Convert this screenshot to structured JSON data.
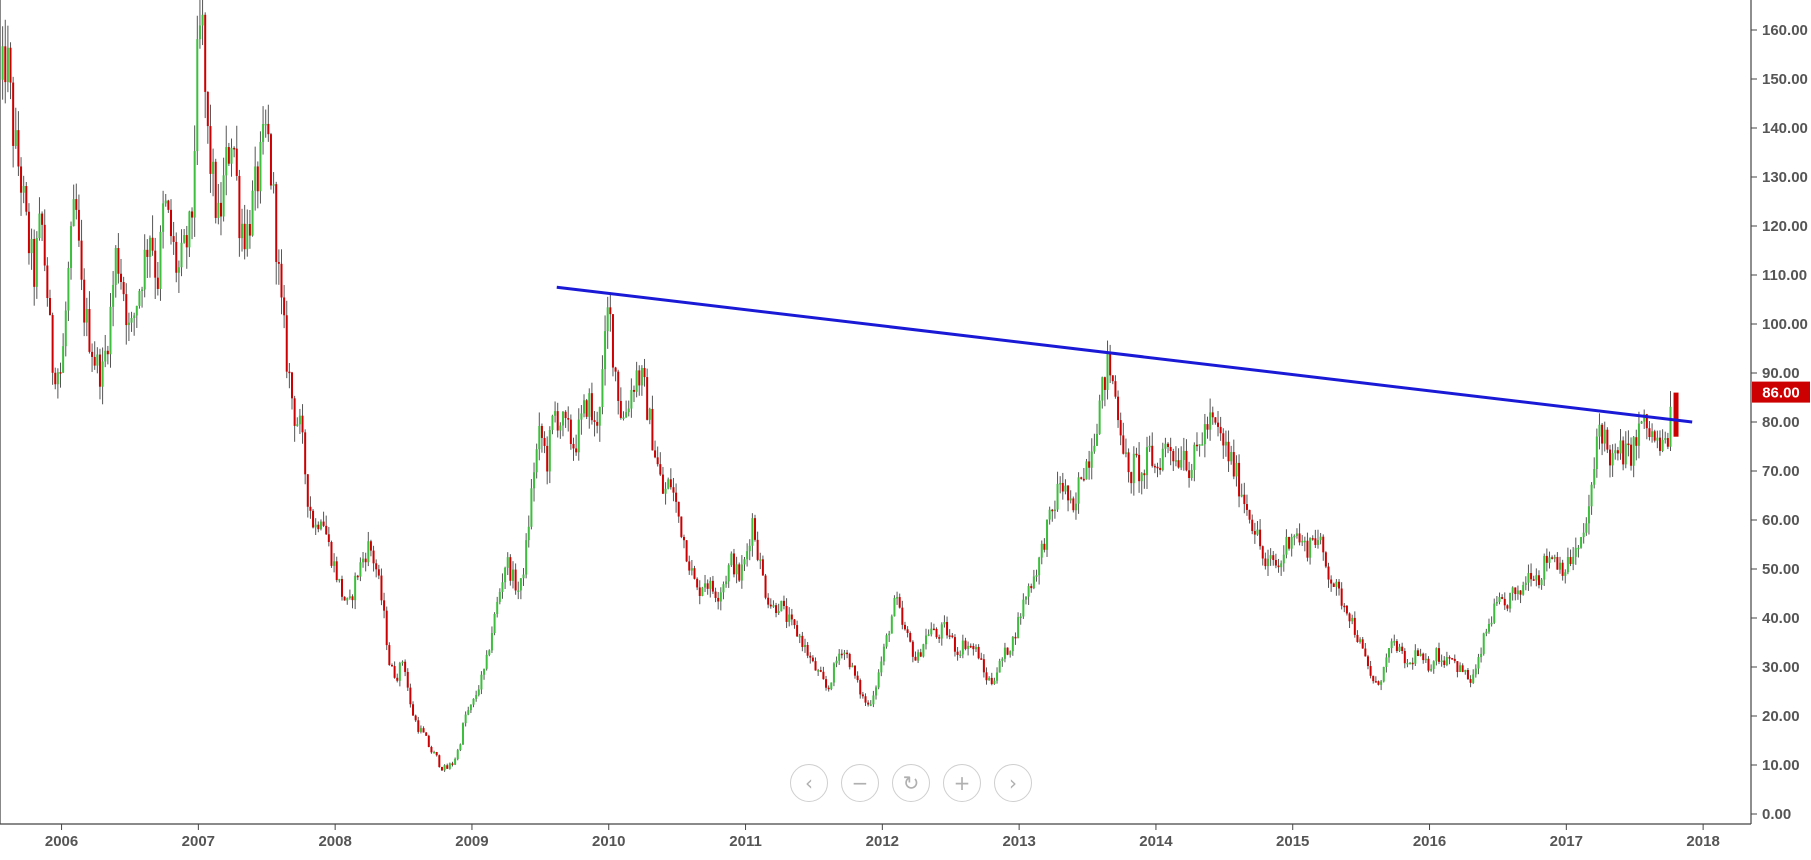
{
  "chart_data": {
    "type": "candlestick",
    "title": "",
    "xlabel": "",
    "ylabel": "",
    "ylim": [
      0,
      160
    ],
    "yticks": [
      "0.00",
      "10.00",
      "20.00",
      "30.00",
      "40.00",
      "50.00",
      "60.00",
      "70.00",
      "80.00",
      "90.00",
      "100.00",
      "110.00",
      "120.00",
      "130.00",
      "140.00",
      "150.00",
      "160.00"
    ],
    "xticks": [
      "2006",
      "2007",
      "2008",
      "2009",
      "2010",
      "2011",
      "2012",
      "2013",
      "2014",
      "2015",
      "2016",
      "2017",
      "2018"
    ],
    "xlim": [
      2005.55,
      2018.35
    ],
    "last_price_label": "86.00",
    "last_price": 86,
    "trendline": {
      "from": {
        "x": 2009.62,
        "y": 107.5
      },
      "to": {
        "x": 2017.92,
        "y": 80.0
      }
    },
    "price_path": [
      [
        2005.55,
        148
      ],
      [
        2005.6,
        155
      ],
      [
        2005.65,
        138
      ],
      [
        2005.7,
        130
      ],
      [
        2005.75,
        118
      ],
      [
        2005.8,
        110
      ],
      [
        2005.85,
        122
      ],
      [
        2005.9,
        105
      ],
      [
        2005.93,
        92
      ],
      [
        2006.0,
        90
      ],
      [
        2006.05,
        110
      ],
      [
        2006.1,
        125
      ],
      [
        2006.15,
        105
      ],
      [
        2006.2,
        98
      ],
      [
        2006.25,
        92
      ],
      [
        2006.3,
        90
      ],
      [
        2006.35,
        100
      ],
      [
        2006.4,
        115
      ],
      [
        2006.45,
        108
      ],
      [
        2006.5,
        97
      ],
      [
        2006.55,
        105
      ],
      [
        2006.6,
        112
      ],
      [
        2006.65,
        120
      ],
      [
        2006.7,
        108
      ],
      [
        2006.75,
        125
      ],
      [
        2006.8,
        118
      ],
      [
        2006.85,
        110
      ],
      [
        2006.9,
        115
      ],
      [
        2006.95,
        120
      ],
      [
        2007.0,
        158
      ],
      [
        2007.03,
        160
      ],
      [
        2007.06,
        140
      ],
      [
        2007.1,
        130
      ],
      [
        2007.15,
        120
      ],
      [
        2007.2,
        132
      ],
      [
        2007.25,
        140
      ],
      [
        2007.3,
        122
      ],
      [
        2007.35,
        118
      ],
      [
        2007.4,
        125
      ],
      [
        2007.45,
        132
      ],
      [
        2007.5,
        140
      ],
      [
        2007.55,
        125
      ],
      [
        2007.6,
        105
      ],
      [
        2007.65,
        92
      ],
      [
        2007.7,
        82
      ],
      [
        2007.75,
        78
      ],
      [
        2007.8,
        65
      ],
      [
        2007.85,
        58
      ],
      [
        2007.9,
        62
      ],
      [
        2007.95,
        55
      ],
      [
        2008.0,
        50
      ],
      [
        2008.05,
        45
      ],
      [
        2008.1,
        42
      ],
      [
        2008.15,
        48
      ],
      [
        2008.2,
        52
      ],
      [
        2008.25,
        55
      ],
      [
        2008.3,
        50
      ],
      [
        2008.35,
        42
      ],
      [
        2008.4,
        30
      ],
      [
        2008.45,
        28
      ],
      [
        2008.5,
        32
      ],
      [
        2008.55,
        22
      ],
      [
        2008.6,
        18
      ],
      [
        2008.65,
        16
      ],
      [
        2008.7,
        13
      ],
      [
        2008.75,
        11
      ],
      [
        2008.8,
        9
      ],
      [
        2008.85,
        10
      ],
      [
        2008.9,
        13
      ],
      [
        2008.95,
        20
      ],
      [
        2009.0,
        22
      ],
      [
        2009.05,
        26
      ],
      [
        2009.1,
        30
      ],
      [
        2009.15,
        38
      ],
      [
        2009.2,
        45
      ],
      [
        2009.25,
        52
      ],
      [
        2009.3,
        48
      ],
      [
        2009.35,
        45
      ],
      [
        2009.4,
        55
      ],
      [
        2009.45,
        70
      ],
      [
        2009.5,
        78
      ],
      [
        2009.55,
        72
      ],
      [
        2009.6,
        82
      ],
      [
        2009.65,
        80
      ],
      [
        2009.7,
        78
      ],
      [
        2009.75,
        75
      ],
      [
        2009.8,
        80
      ],
      [
        2009.85,
        85
      ],
      [
        2009.9,
        78
      ],
      [
        2009.95,
        88
      ],
      [
        2010.0,
        104
      ],
      [
        2010.03,
        95
      ],
      [
        2010.06,
        88
      ],
      [
        2010.1,
        80
      ],
      [
        2010.15,
        85
      ],
      [
        2010.2,
        90
      ],
      [
        2010.25,
        88
      ],
      [
        2010.3,
        80
      ],
      [
        2010.35,
        72
      ],
      [
        2010.4,
        65
      ],
      [
        2010.45,
        68
      ],
      [
        2010.5,
        62
      ],
      [
        2010.55,
        56
      ],
      [
        2010.6,
        50
      ],
      [
        2010.65,
        45
      ],
      [
        2010.7,
        48
      ],
      [
        2010.75,
        46
      ],
      [
        2010.8,
        45
      ],
      [
        2010.85,
        48
      ],
      [
        2010.9,
        52
      ],
      [
        2010.95,
        48
      ],
      [
        2011.0,
        52
      ],
      [
        2011.05,
        60
      ],
      [
        2011.1,
        52
      ],
      [
        2011.15,
        45
      ],
      [
        2011.2,
        42
      ],
      [
        2011.25,
        43
      ],
      [
        2011.3,
        40
      ],
      [
        2011.35,
        38
      ],
      [
        2011.4,
        36
      ],
      [
        2011.45,
        33
      ],
      [
        2011.5,
        30
      ],
      [
        2011.55,
        28
      ],
      [
        2011.6,
        25
      ],
      [
        2011.65,
        30
      ],
      [
        2011.7,
        34
      ],
      [
        2011.75,
        32
      ],
      [
        2011.8,
        28
      ],
      [
        2011.85,
        24
      ],
      [
        2011.9,
        22
      ],
      [
        2011.95,
        26
      ],
      [
        2012.0,
        32
      ],
      [
        2012.05,
        38
      ],
      [
        2012.1,
        44
      ],
      [
        2012.15,
        38
      ],
      [
        2012.2,
        35
      ],
      [
        2012.25,
        31
      ],
      [
        2012.3,
        35
      ],
      [
        2012.35,
        38
      ],
      [
        2012.4,
        36
      ],
      [
        2012.45,
        38
      ],
      [
        2012.5,
        36
      ],
      [
        2012.55,
        33
      ],
      [
        2012.6,
        35
      ],
      [
        2012.65,
        34
      ],
      [
        2012.7,
        33
      ],
      [
        2012.75,
        28
      ],
      [
        2012.8,
        27
      ],
      [
        2012.85,
        30
      ],
      [
        2012.9,
        33
      ],
      [
        2012.95,
        35
      ],
      [
        2013.0,
        40
      ],
      [
        2013.05,
        45
      ],
      [
        2013.1,
        48
      ],
      [
        2013.15,
        52
      ],
      [
        2013.2,
        58
      ],
      [
        2013.25,
        62
      ],
      [
        2013.3,
        68
      ],
      [
        2013.35,
        65
      ],
      [
        2013.4,
        60
      ],
      [
        2013.45,
        70
      ],
      [
        2013.5,
        72
      ],
      [
        2013.55,
        78
      ],
      [
        2013.6,
        85
      ],
      [
        2013.65,
        92
      ],
      [
        2013.7,
        86
      ],
      [
        2013.75,
        78
      ],
      [
        2013.8,
        68
      ],
      [
        2013.85,
        72
      ],
      [
        2013.9,
        68
      ],
      [
        2013.95,
        74
      ],
      [
        2014.0,
        70
      ],
      [
        2014.05,
        74
      ],
      [
        2014.1,
        76
      ],
      [
        2014.15,
        72
      ],
      [
        2014.2,
        75
      ],
      [
        2014.25,
        70
      ],
      [
        2014.3,
        74
      ],
      [
        2014.35,
        78
      ],
      [
        2014.4,
        80
      ],
      [
        2014.45,
        78
      ],
      [
        2014.5,
        75
      ],
      [
        2014.55,
        72
      ],
      [
        2014.6,
        68
      ],
      [
        2014.65,
        64
      ],
      [
        2014.7,
        60
      ],
      [
        2014.75,
        56
      ],
      [
        2014.8,
        50
      ],
      [
        2014.85,
        52
      ],
      [
        2014.9,
        50
      ],
      [
        2014.95,
        55
      ],
      [
        2015.0,
        58
      ],
      [
        2015.05,
        56
      ],
      [
        2015.1,
        54
      ],
      [
        2015.15,
        57
      ],
      [
        2015.2,
        55
      ],
      [
        2015.25,
        50
      ],
      [
        2015.3,
        47
      ],
      [
        2015.35,
        44
      ],
      [
        2015.4,
        42
      ],
      [
        2015.45,
        38
      ],
      [
        2015.5,
        34
      ],
      [
        2015.55,
        30
      ],
      [
        2015.6,
        26
      ],
      [
        2015.65,
        28
      ],
      [
        2015.7,
        33
      ],
      [
        2015.75,
        35
      ],
      [
        2015.8,
        32
      ],
      [
        2015.85,
        30
      ],
      [
        2015.9,
        33
      ],
      [
        2015.95,
        31
      ],
      [
        2016.0,
        30
      ],
      [
        2016.05,
        33
      ],
      [
        2016.1,
        31
      ],
      [
        2016.15,
        33
      ],
      [
        2016.2,
        30
      ],
      [
        2016.25,
        29
      ],
      [
        2016.3,
        27
      ],
      [
        2016.35,
        30
      ],
      [
        2016.4,
        36
      ],
      [
        2016.45,
        40
      ],
      [
        2016.5,
        43
      ],
      [
        2016.55,
        42
      ],
      [
        2016.6,
        45
      ],
      [
        2016.65,
        44
      ],
      [
        2016.7,
        48
      ],
      [
        2016.75,
        50
      ],
      [
        2016.8,
        48
      ],
      [
        2016.85,
        52
      ],
      [
        2016.9,
        53
      ],
      [
        2016.95,
        51
      ],
      [
        2017.0,
        50
      ],
      [
        2017.05,
        53
      ],
      [
        2017.1,
        54
      ],
      [
        2017.15,
        60
      ],
      [
        2017.2,
        68
      ],
      [
        2017.23,
        80
      ],
      [
        2017.27,
        78
      ],
      [
        2017.3,
        74
      ],
      [
        2017.35,
        72
      ],
      [
        2017.4,
        74
      ],
      [
        2017.45,
        73
      ],
      [
        2017.5,
        75
      ],
      [
        2017.55,
        80
      ],
      [
        2017.6,
        78
      ],
      [
        2017.65,
        76
      ],
      [
        2017.7,
        74
      ],
      [
        2017.75,
        78
      ],
      [
        2017.78,
        86
      ]
    ]
  },
  "navigator": {
    "prev_icon": "‹",
    "zoom_out_icon": "−",
    "reset_icon": "↻",
    "zoom_in_icon": "+",
    "next_icon": "›"
  },
  "colors": {
    "up": "#3cbf3c",
    "down": "#cc0000",
    "wick": "#555555",
    "trendline": "#1a1ad6",
    "axis": "#444444",
    "label_bg": "#cc0000"
  }
}
